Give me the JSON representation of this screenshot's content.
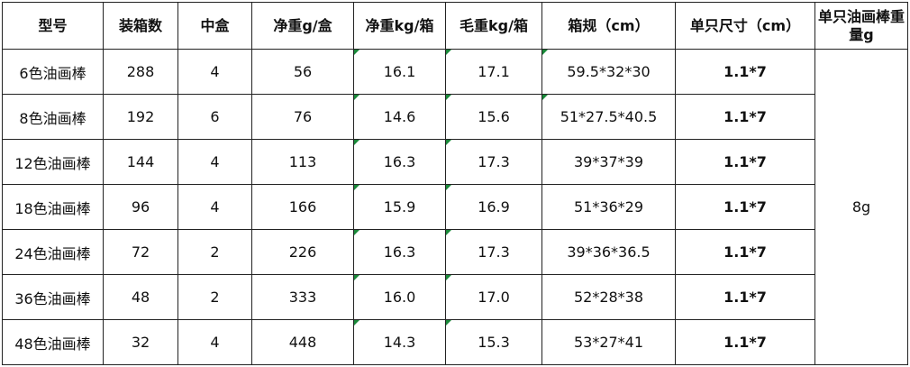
{
  "table": {
    "header": [
      "型号",
      "装箱数",
      "中盒",
      "净重g/盒",
      "净重kg/箱",
      "毛重kg/箱",
      "箱规（cm）",
      "单只尺寸（cm）",
      "单只油画棒重量g"
    ],
    "rows": [
      [
        "6色油画棒",
        "288",
        "4",
        "56",
        "16.1",
        "17.1",
        "59.5*32*30",
        "1.1*7"
      ],
      [
        "8色油画棒",
        "192",
        "6",
        "76",
        "14.6",
        "15.6",
        "51*27.5*40.5",
        "1.1*7"
      ],
      [
        "12色油画棒",
        "144",
        "4",
        "113",
        "16.3",
        "17.3",
        "39*37*39",
        "1.1*7"
      ],
      [
        "18色油画棒",
        "96",
        "4",
        "166",
        "15.9",
        "16.9",
        "51*36*29",
        "1.1*7"
      ],
      [
        "24色油画棒",
        "72",
        "2",
        "226",
        "16.3",
        "17.3",
        "39*36*36.5",
        "1.1*7"
      ],
      [
        "36色油画棒",
        "48",
        "2",
        "333",
        "16.0",
        "17.0",
        "52*28*38",
        "1.1*7"
      ],
      [
        "48色油画棒",
        "32",
        "4",
        "448",
        "14.3",
        "15.3",
        "53*27*41",
        "1.1*7"
      ]
    ],
    "weight": "8g"
  }
}
